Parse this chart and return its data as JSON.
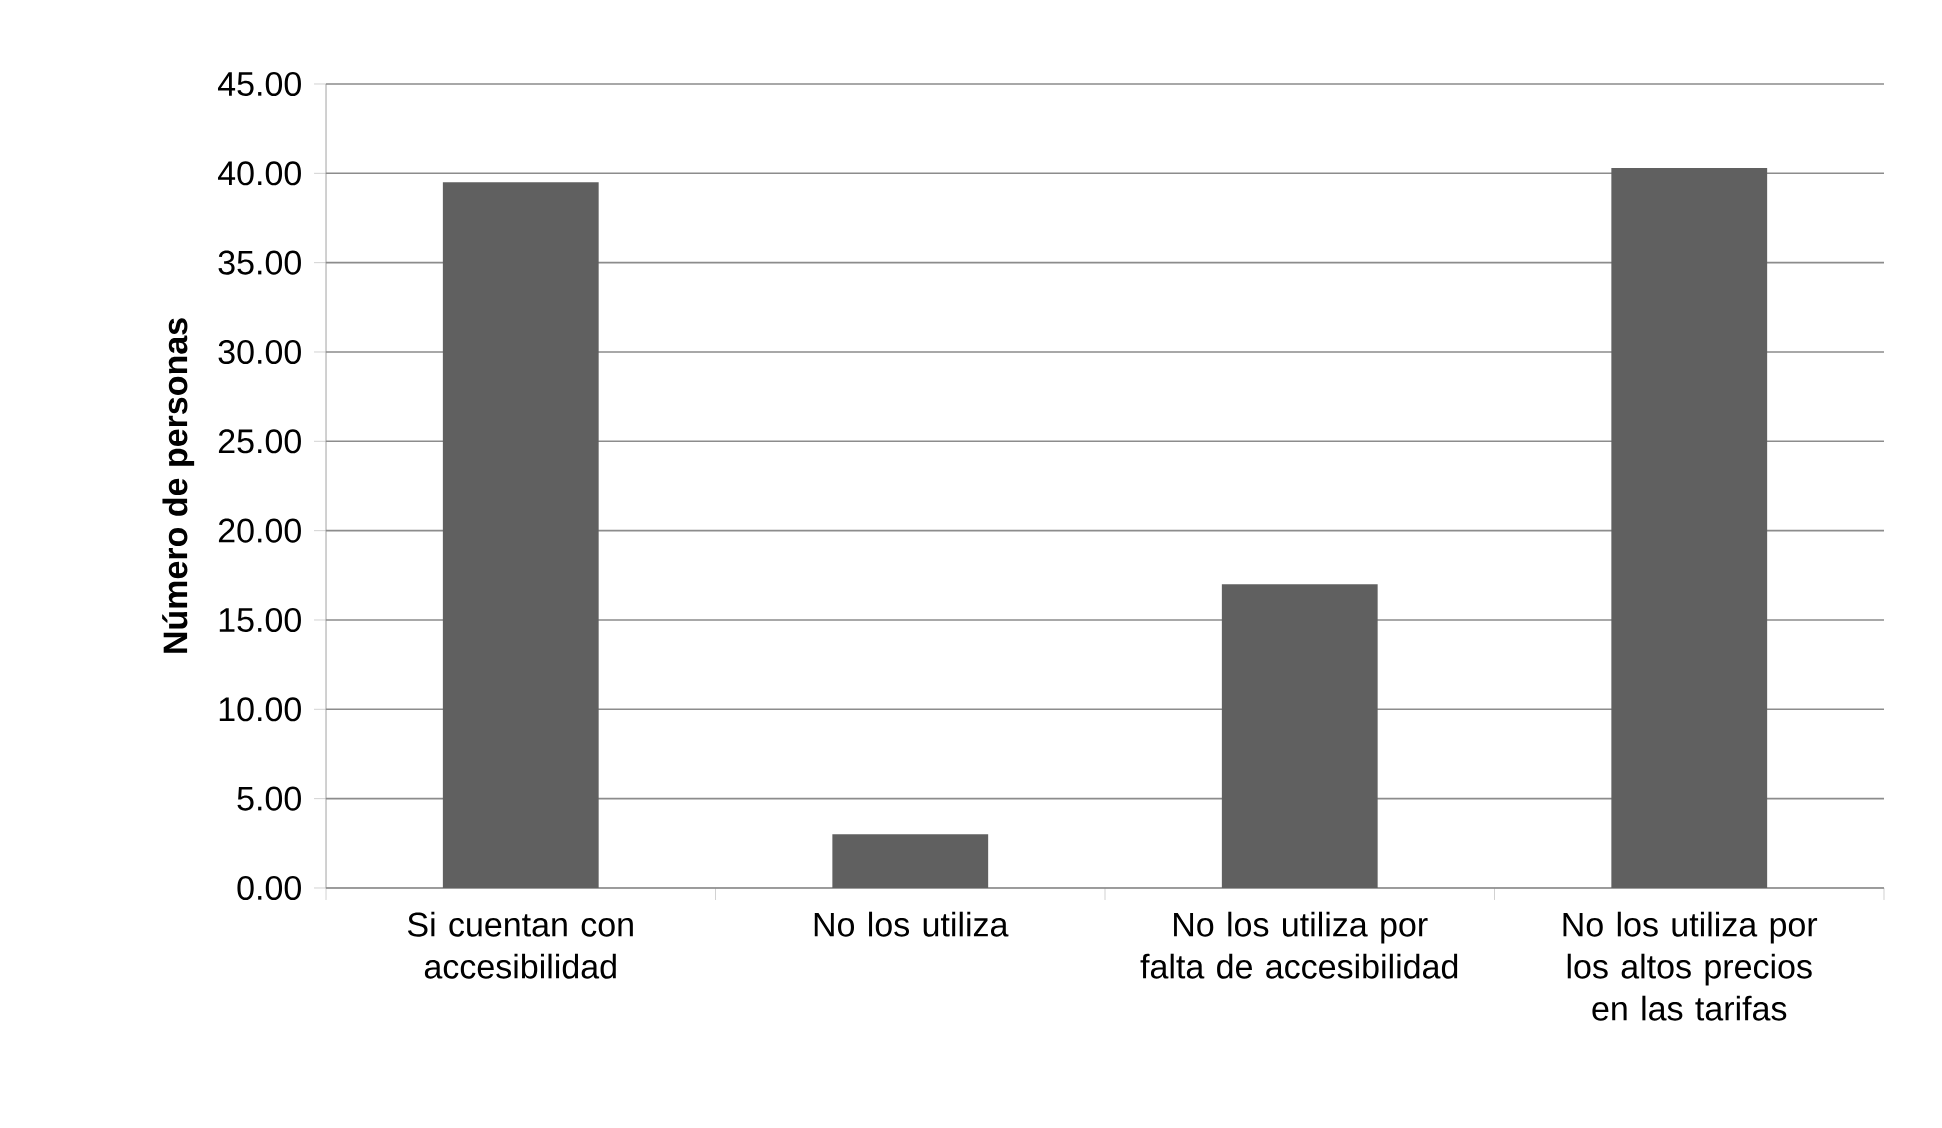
{
  "chart_data": {
    "type": "bar",
    "ylabel": "Número de personas",
    "categories": [
      "Si cuentan con accesibilidad",
      "No los utiliza",
      "No los utiliza por falta de accesibilidad",
      "No los utiliza por los altos precios en las tarifas"
    ],
    "values": [
      39.5,
      3.0,
      17.0,
      40.3
    ],
    "color": "#606060",
    "ylim": [
      0,
      45
    ],
    "yticks": [
      {
        "value": 0,
        "label": "0.00"
      },
      {
        "value": 5,
        "label": "5.00"
      },
      {
        "value": 10,
        "label": "10.00"
      },
      {
        "value": 15,
        "label": "15.00"
      },
      {
        "value": 20,
        "label": "20.00"
      },
      {
        "value": 25,
        "label": "25.00"
      },
      {
        "value": 30,
        "label": "30.00"
      },
      {
        "value": 35,
        "label": "35.00"
      },
      {
        "value": 40,
        "label": "40.00"
      },
      {
        "value": 45,
        "label": "45.00"
      }
    ],
    "grid": "y"
  }
}
